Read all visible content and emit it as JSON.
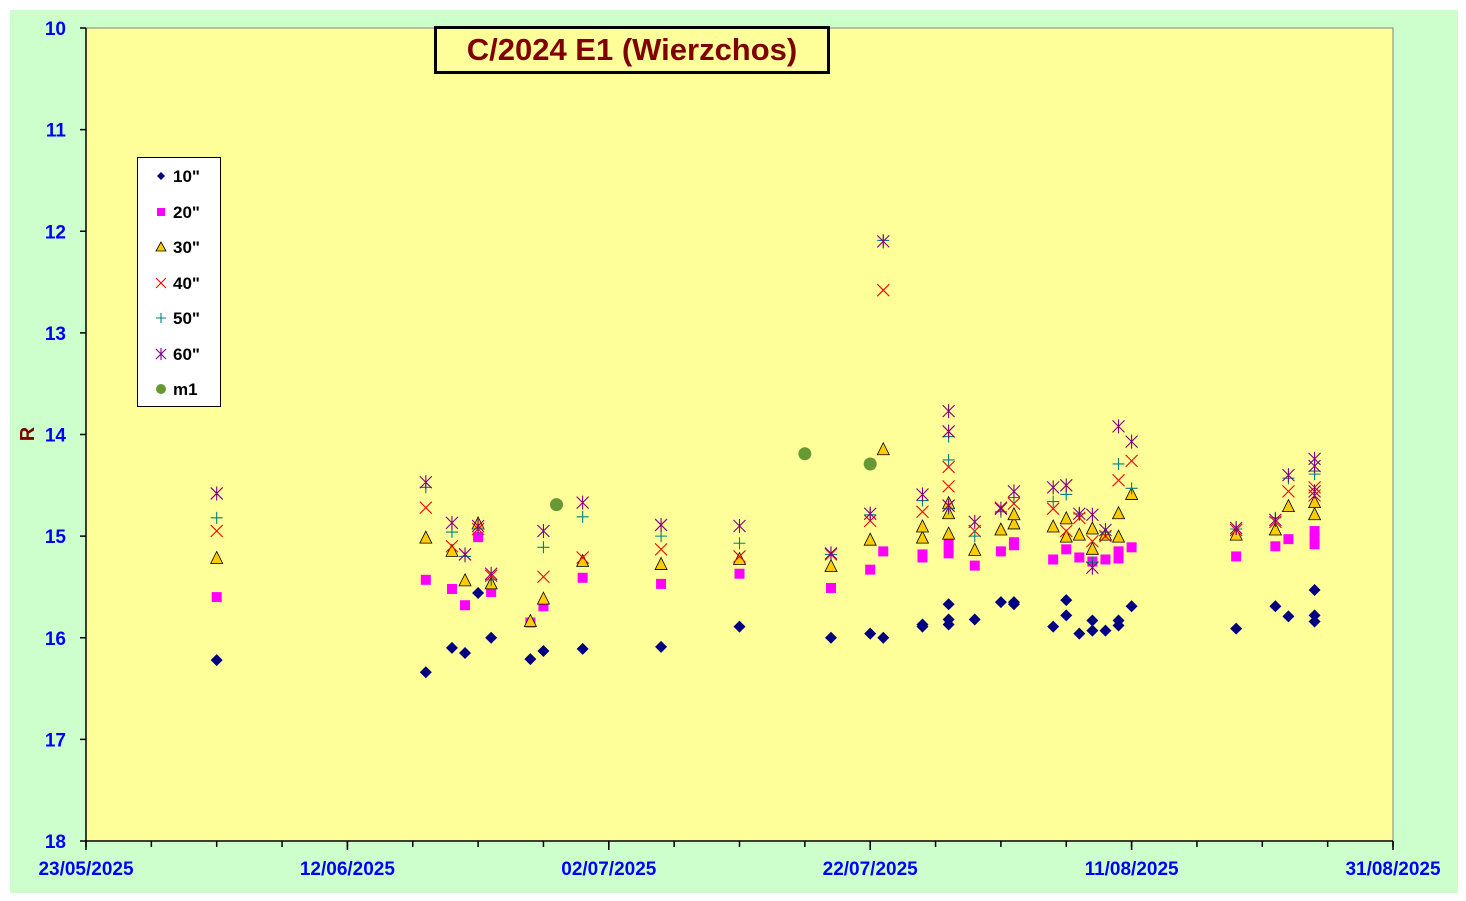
{
  "chart_data": {
    "type": "scatter",
    "title": "C/2024 E1 (Wierzchos)",
    "ylabel": "R",
    "xlabel": "",
    "x_axis": {
      "type": "date",
      "range": [
        "2025-05-23",
        "2025-08-31"
      ],
      "tick_labels": [
        "23/05/2025",
        "12/06/2025",
        "02/07/2025",
        "22/07/2025",
        "11/08/2025",
        "31/08/2025"
      ],
      "minor_ticks_days": 5
    },
    "y_axis": {
      "range": [
        10,
        18
      ],
      "reversed": true,
      "ticks": [
        10,
        11,
        12,
        13,
        14,
        15,
        16,
        17,
        18
      ]
    },
    "grid": false,
    "legend_position": "top-left",
    "colors": {
      "plot_background": "#ffff99",
      "outer_background": "#ccffcc",
      "tick_labels": "#0000ff",
      "title_text": "#800000"
    },
    "series": [
      {
        "name": "10\"",
        "marker": "diamond",
        "color": "#000080",
        "points": [
          [
            "2025-06-02",
            16.22
          ],
          [
            "2025-06-18",
            16.34
          ],
          [
            "2025-06-20",
            16.1
          ],
          [
            "2025-06-21",
            16.15
          ],
          [
            "2025-06-22",
            15.56
          ],
          [
            "2025-06-23",
            16.0
          ],
          [
            "2025-06-26",
            16.21
          ],
          [
            "2025-06-27",
            16.13
          ],
          [
            "2025-06-30",
            16.11
          ],
          [
            "2025-07-06",
            16.09
          ],
          [
            "2025-07-12",
            15.89
          ],
          [
            "2025-07-19",
            16.0
          ],
          [
            "2025-07-22",
            15.96
          ],
          [
            "2025-07-23",
            16.0
          ],
          [
            "2025-07-26",
            15.87
          ],
          [
            "2025-07-26",
            15.89
          ],
          [
            "2025-07-28",
            15.67
          ],
          [
            "2025-07-28",
            15.82
          ],
          [
            "2025-07-28",
            15.87
          ],
          [
            "2025-07-30",
            15.82
          ],
          [
            "2025-08-01",
            15.65
          ],
          [
            "2025-08-02",
            15.65
          ],
          [
            "2025-08-02",
            15.67
          ],
          [
            "2025-08-05",
            15.89
          ],
          [
            "2025-08-06",
            15.63
          ],
          [
            "2025-08-06",
            15.78
          ],
          [
            "2025-08-07",
            15.96
          ],
          [
            "2025-08-08",
            15.83
          ],
          [
            "2025-08-08",
            15.93
          ],
          [
            "2025-08-09",
            15.93
          ],
          [
            "2025-08-10",
            15.83
          ],
          [
            "2025-08-10",
            15.88
          ],
          [
            "2025-08-11",
            15.69
          ],
          [
            "2025-08-19",
            15.91
          ],
          [
            "2025-08-22",
            15.69
          ],
          [
            "2025-08-23",
            15.79
          ],
          [
            "2025-08-25",
            15.53
          ],
          [
            "2025-08-25",
            15.78
          ],
          [
            "2025-08-25",
            15.84
          ]
        ]
      },
      {
        "name": "20\"",
        "marker": "square",
        "color": "#ff00ff",
        "points": [
          [
            "2025-06-02",
            15.6
          ],
          [
            "2025-06-18",
            15.43
          ],
          [
            "2025-06-20",
            15.52
          ],
          [
            "2025-06-21",
            15.68
          ],
          [
            "2025-06-22",
            15.01
          ],
          [
            "2025-06-23",
            15.55
          ],
          [
            "2025-06-26",
            15.85
          ],
          [
            "2025-06-27",
            15.69
          ],
          [
            "2025-06-30",
            15.41
          ],
          [
            "2025-07-06",
            15.47
          ],
          [
            "2025-07-12",
            15.37
          ],
          [
            "2025-07-19",
            15.51
          ],
          [
            "2025-07-22",
            15.33
          ],
          [
            "2025-07-23",
            15.15
          ],
          [
            "2025-07-26",
            15.18
          ],
          [
            "2025-07-26",
            15.21
          ],
          [
            "2025-07-28",
            15.17
          ],
          [
            "2025-07-28",
            15.08
          ],
          [
            "2025-07-30",
            15.29
          ],
          [
            "2025-08-01",
            15.15
          ],
          [
            "2025-08-02",
            15.06
          ],
          [
            "2025-08-02",
            15.09
          ],
          [
            "2025-08-05",
            15.23
          ],
          [
            "2025-08-06",
            15.13
          ],
          [
            "2025-08-07",
            15.21
          ],
          [
            "2025-08-08",
            15.25
          ],
          [
            "2025-08-09",
            15.23
          ],
          [
            "2025-08-10",
            15.22
          ],
          [
            "2025-08-10",
            15.15
          ],
          [
            "2025-08-11",
            15.11
          ],
          [
            "2025-08-19",
            15.2
          ],
          [
            "2025-08-22",
            15.1
          ],
          [
            "2025-08-23",
            15.03
          ],
          [
            "2025-08-25",
            14.95
          ],
          [
            "2025-08-25",
            15.08
          ],
          [
            "2025-08-25",
            15.02
          ]
        ]
      },
      {
        "name": "30\"",
        "marker": "triangle",
        "color": "#ffcc00",
        "points": [
          [
            "2025-06-02",
            15.22
          ],
          [
            "2025-06-18",
            15.02
          ],
          [
            "2025-06-20",
            15.15
          ],
          [
            "2025-06-21",
            15.44
          ],
          [
            "2025-06-22",
            14.88
          ],
          [
            "2025-06-23",
            15.47
          ],
          [
            "2025-06-26",
            15.84
          ],
          [
            "2025-06-27",
            15.62
          ],
          [
            "2025-06-30",
            15.25
          ],
          [
            "2025-07-06",
            15.28
          ],
          [
            "2025-07-12",
            15.23
          ],
          [
            "2025-07-19",
            15.3
          ],
          [
            "2025-07-22",
            15.04
          ],
          [
            "2025-07-23",
            14.15
          ],
          [
            "2025-07-26",
            15.02
          ],
          [
            "2025-07-26",
            14.91
          ],
          [
            "2025-07-28",
            14.98
          ],
          [
            "2025-07-28",
            14.78
          ],
          [
            "2025-07-28",
            14.68
          ],
          [
            "2025-07-30",
            15.14
          ],
          [
            "2025-08-01",
            14.94
          ],
          [
            "2025-08-02",
            14.88
          ],
          [
            "2025-08-02",
            14.79
          ],
          [
            "2025-08-05",
            14.91
          ],
          [
            "2025-08-06",
            14.83
          ],
          [
            "2025-08-06",
            15.01
          ],
          [
            "2025-08-07",
            14.99
          ],
          [
            "2025-08-08",
            15.13
          ],
          [
            "2025-08-08",
            14.93
          ],
          [
            "2025-08-09",
            14.99
          ],
          [
            "2025-08-10",
            15.01
          ],
          [
            "2025-08-10",
            14.78
          ],
          [
            "2025-08-11",
            14.59
          ],
          [
            "2025-08-19",
            14.99
          ],
          [
            "2025-08-22",
            14.94
          ],
          [
            "2025-08-23",
            14.71
          ],
          [
            "2025-08-25",
            14.79
          ],
          [
            "2025-08-25",
            14.67
          ]
        ]
      },
      {
        "name": "40\"",
        "marker": "x",
        "color": "#ff0000",
        "points": [
          [
            "2025-06-02",
            14.95
          ],
          [
            "2025-06-18",
            14.72
          ],
          [
            "2025-06-20",
            15.1
          ],
          [
            "2025-06-21",
            15.18
          ],
          [
            "2025-06-22",
            14.93
          ],
          [
            "2025-06-23",
            15.39
          ],
          [
            "2025-06-27",
            15.4
          ],
          [
            "2025-06-30",
            15.21
          ],
          [
            "2025-07-06",
            15.13
          ],
          [
            "2025-07-12",
            15.2
          ],
          [
            "2025-07-19",
            15.18
          ],
          [
            "2025-07-22",
            14.85
          ],
          [
            "2025-07-23",
            12.58
          ],
          [
            "2025-07-26",
            14.76
          ],
          [
            "2025-07-28",
            14.51
          ],
          [
            "2025-07-28",
            14.32
          ],
          [
            "2025-07-28",
            14.7
          ],
          [
            "2025-07-30",
            14.95
          ],
          [
            "2025-08-01",
            14.72
          ],
          [
            "2025-08-02",
            14.68
          ],
          [
            "2025-08-05",
            14.73
          ],
          [
            "2025-08-06",
            14.95
          ],
          [
            "2025-08-07",
            14.82
          ],
          [
            "2025-08-08",
            15.05
          ],
          [
            "2025-08-09",
            15.0
          ],
          [
            "2025-08-10",
            14.45
          ],
          [
            "2025-08-11",
            14.26
          ],
          [
            "2025-08-19",
            14.94
          ],
          [
            "2025-08-22",
            14.86
          ],
          [
            "2025-08-23",
            14.56
          ],
          [
            "2025-08-25",
            14.52
          ],
          [
            "2025-08-25",
            14.6
          ]
        ]
      },
      {
        "name": "50\"",
        "marker": "plus",
        "color": "#008080",
        "points": [
          [
            "2025-06-02",
            14.82
          ],
          [
            "2025-06-18",
            14.52
          ],
          [
            "2025-06-20",
            14.96
          ],
          [
            "2025-06-21",
            15.2
          ],
          [
            "2025-06-22",
            14.93
          ],
          [
            "2025-06-23",
            15.43
          ],
          [
            "2025-06-27",
            15.11
          ],
          [
            "2025-06-30",
            14.81
          ],
          [
            "2025-07-06",
            15.0
          ],
          [
            "2025-07-12",
            15.07
          ],
          [
            "2025-07-19",
            15.18
          ],
          [
            "2025-07-22",
            14.79
          ],
          [
            "2025-07-23",
            12.09
          ],
          [
            "2025-07-26",
            14.65
          ],
          [
            "2025-07-28",
            14.25
          ],
          [
            "2025-07-28",
            14.02
          ],
          [
            "2025-07-28",
            14.73
          ],
          [
            "2025-07-30",
            15.0
          ],
          [
            "2025-08-01",
            14.76
          ],
          [
            "2025-08-02",
            14.62
          ],
          [
            "2025-08-05",
            14.66
          ],
          [
            "2025-08-06",
            14.59
          ],
          [
            "2025-08-07",
            14.78
          ],
          [
            "2025-08-08",
            15.26
          ],
          [
            "2025-08-09",
            14.96
          ],
          [
            "2025-08-10",
            14.29
          ],
          [
            "2025-08-11",
            14.53
          ],
          [
            "2025-08-19",
            14.93
          ],
          [
            "2025-08-22",
            14.82
          ],
          [
            "2025-08-23",
            14.43
          ],
          [
            "2025-08-25",
            14.39
          ],
          [
            "2025-08-25",
            14.36
          ]
        ]
      },
      {
        "name": "60\"",
        "marker": "star",
        "color": "#800080",
        "points": [
          [
            "2025-06-02",
            14.58
          ],
          [
            "2025-06-18",
            14.47
          ],
          [
            "2025-06-20",
            14.87
          ],
          [
            "2025-06-21",
            15.18
          ],
          [
            "2025-06-22",
            14.9
          ],
          [
            "2025-06-23",
            15.37
          ],
          [
            "2025-06-27",
            14.95
          ],
          [
            "2025-06-30",
            14.67
          ],
          [
            "2025-07-06",
            14.89
          ],
          [
            "2025-07-12",
            14.9
          ],
          [
            "2025-07-19",
            15.17
          ],
          [
            "2025-07-22",
            14.78
          ],
          [
            "2025-07-23",
            12.1
          ],
          [
            "2025-07-26",
            14.59
          ],
          [
            "2025-07-28",
            13.77
          ],
          [
            "2025-07-28",
            13.97
          ],
          [
            "2025-07-28",
            14.7
          ],
          [
            "2025-07-30",
            14.86
          ],
          [
            "2025-08-01",
            14.73
          ],
          [
            "2025-08-02",
            14.56
          ],
          [
            "2025-08-05",
            14.52
          ],
          [
            "2025-08-06",
            14.5
          ],
          [
            "2025-08-07",
            14.78
          ],
          [
            "2025-08-08",
            14.79
          ],
          [
            "2025-08-08",
            15.31
          ],
          [
            "2025-08-09",
            14.94
          ],
          [
            "2025-08-10",
            13.92
          ],
          [
            "2025-08-11",
            14.07
          ],
          [
            "2025-08-19",
            14.92
          ],
          [
            "2025-08-22",
            14.84
          ],
          [
            "2025-08-23",
            14.4
          ],
          [
            "2025-08-25",
            14.24
          ],
          [
            "2025-08-25",
            14.31
          ],
          [
            "2025-08-25",
            14.56
          ]
        ]
      },
      {
        "name": "m1",
        "marker": "circle",
        "color": "#669933",
        "points": [
          [
            "2025-06-28",
            14.69
          ],
          [
            "2025-07-17",
            14.19
          ],
          [
            "2025-07-22",
            14.29
          ]
        ]
      }
    ]
  }
}
